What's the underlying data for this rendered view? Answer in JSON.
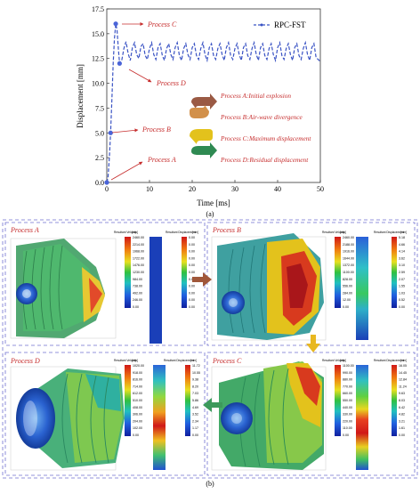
{
  "figure_a": {
    "chart_data": {
      "type": "line",
      "xlabel": "Time [ms]",
      "ylabel": "Displacement [mm]",
      "xlim": [
        0,
        50
      ],
      "ylim": [
        0,
        17.5
      ],
      "xticks": [
        "0",
        "10",
        "20",
        "30",
        "40",
        "50"
      ],
      "yticks": [
        "0.0",
        "2.5",
        "5.0",
        "7.5",
        "10.0",
        "12.5",
        "15.0",
        "17.5"
      ],
      "legend": {
        "name": "RPC-FST",
        "placement": "top-right"
      },
      "series": [
        {
          "name": "RPC-FST",
          "x": [
            0,
            0.3,
            0.6,
            0.9,
            1.2,
            1.5,
            1.8,
            2.1,
            2.4,
            2.7,
            3.0,
            3.5,
            4.0,
            4.5,
            5,
            5.5,
            6,
            6.5,
            7,
            7.5,
            8,
            8.5,
            9,
            9.5,
            10,
            10.5,
            11,
            11.5,
            12,
            12.5,
            13,
            13.5,
            14,
            14.5,
            15,
            15.5,
            16,
            16.5,
            17,
            17.5,
            18,
            18.5,
            19,
            19.5,
            20,
            20.5,
            21,
            21.5,
            22,
            22.5,
            23,
            23.5,
            24,
            24.5,
            25,
            25.5,
            26,
            26.5,
            27,
            27.5,
            28,
            28.5,
            29,
            29.5,
            30,
            30.5,
            31,
            31.5,
            32,
            32.5,
            33,
            33.5,
            34,
            34.5,
            35,
            35.5,
            36,
            36.5,
            37,
            37.5,
            38,
            38.5,
            39,
            39.5,
            40,
            40.5,
            41,
            41.5,
            42,
            42.5,
            43,
            43.5,
            44,
            44.5,
            45,
            45.5,
            46,
            46.5,
            47,
            47.5,
            48,
            48.5,
            49,
            49.5,
            50
          ],
          "y": [
            0.0,
            0.5,
            2.5,
            5.0,
            8.5,
            12.0,
            14.5,
            16.0,
            15.4,
            13.5,
            12.0,
            12.3,
            13.5,
            14.2,
            13.0,
            12.3,
            13.6,
            14.1,
            12.9,
            12.5,
            13.7,
            14.0,
            12.8,
            12.4,
            13.5,
            14.1,
            12.9,
            12.4,
            13.6,
            14.0,
            12.8,
            12.3,
            13.5,
            14.0,
            12.9,
            12.4,
            13.6,
            14.1,
            12.8,
            12.3,
            13.5,
            14.0,
            12.9,
            12.4,
            13.6,
            14.0,
            12.8,
            12.4,
            13.5,
            14.1,
            12.9,
            12.3,
            13.6,
            14.0,
            12.8,
            12.4,
            13.5,
            14.0,
            12.9,
            12.3,
            13.6,
            14.1,
            12.8,
            12.4,
            13.5,
            14.0,
            12.9,
            12.3,
            13.6,
            14.0,
            12.8,
            12.4,
            13.5,
            14.1,
            12.9,
            12.3,
            13.6,
            14.0,
            12.8,
            12.4,
            13.5,
            14.0,
            12.9,
            12.3,
            13.6,
            14.1,
            12.8,
            12.4,
            13.5,
            14.0,
            12.9,
            12.3,
            13.6,
            14.0,
            12.8,
            12.4,
            13.5,
            14.1,
            12.9,
            12.3,
            13.6,
            14.0,
            12.6,
            12.4,
            12.2
          ]
        }
      ],
      "markers": [
        {
          "label": "Process A",
          "x": 0,
          "y": 0.0
        },
        {
          "label": "Process B",
          "x": 0.9,
          "y": 5.0
        },
        {
          "label": "Process C",
          "x": 2.1,
          "y": 16.0
        },
        {
          "label": "Process D",
          "x": 3.0,
          "y": 12.0
        }
      ],
      "colors": {
        "line": "#3a53c4",
        "marker": "#4a64d8",
        "annotation": "#c62d2d"
      }
    },
    "stages": [
      {
        "label": "Process A:Initial explosion",
        "color": "#9a5a44"
      },
      {
        "label": "Process B:Air-wave  divergence",
        "color": "#d2904a"
      },
      {
        "label": "Process C:Maximum displacement",
        "color": "#e3c21c"
      },
      {
        "label": "Process D:Residual displacement",
        "color": "#2f8a52"
      }
    ],
    "caption": "(a)"
  },
  "figure_b": {
    "caption": "(b)",
    "arrows": {
      "b_to_c": "#e8b820",
      "a_to_b": "#a0573a",
      "c_to_d": "#3c9a5b"
    },
    "legend_titles": {
      "velocity": "Resultant Velocity",
      "velocity_unit": "[m/s]",
      "displacement": "Resultant Displacement",
      "displacement_unit": "[mm]"
    },
    "panels": [
      {
        "id": "A",
        "title": "Process A",
        "velocity_ticks": [
          "2460.00",
          "2214.00",
          "1968.00",
          "1722.00",
          "1476.00",
          "1230.00",
          "984.00",
          "738.00",
          "492.00",
          "246.00",
          "0.00"
        ],
        "displacement_ticks": [
          "0.00",
          "0.00",
          "0.00",
          "0.00",
          "0.00",
          "0.00",
          "0.00",
          "0.00",
          "0.00",
          "0.00",
          "0.00"
        ]
      },
      {
        "id": "B",
        "title": "Process B",
        "velocity_ticks": [
          "2460.00",
          "2188.00",
          "1916.00",
          "1644.00",
          "1372.00",
          "1100.00",
          "828.00",
          "556.00",
          "284.00",
          "12.00",
          "0.00"
        ],
        "displacement_ticks": [
          "5.18",
          "4.66",
          "4.14",
          "3.62",
          "3.10",
          "2.59",
          "2.07",
          "1.55",
          "1.03",
          "0.52",
          "0.00"
        ]
      },
      {
        "id": "C",
        "title": "Process C",
        "velocity_ticks": [
          "1100.00",
          "990.00",
          "880.00",
          "770.00",
          "660.00",
          "550.00",
          "440.00",
          "330.00",
          "220.00",
          "110.00",
          "0.00"
        ],
        "displacement_ticks": [
          "16.05",
          "14.45",
          "12.84",
          "11.24",
          "9.63",
          "8.03",
          "6.42",
          "4.82",
          "3.21",
          "1.61",
          "0.00"
        ]
      },
      {
        "id": "D",
        "title": "Process D",
        "velocity_ticks": [
          "1020.00",
          "918.00",
          "816.00",
          "714.00",
          "612.00",
          "510.00",
          "408.00",
          "306.00",
          "204.00",
          "102.00",
          "0.00"
        ],
        "displacement_ticks": [
          "11.72",
          "10.55",
          "9.38",
          "8.20",
          "7.03",
          "5.86",
          "4.69",
          "3.52",
          "2.34",
          "1.17",
          "0.00"
        ]
      }
    ]
  }
}
